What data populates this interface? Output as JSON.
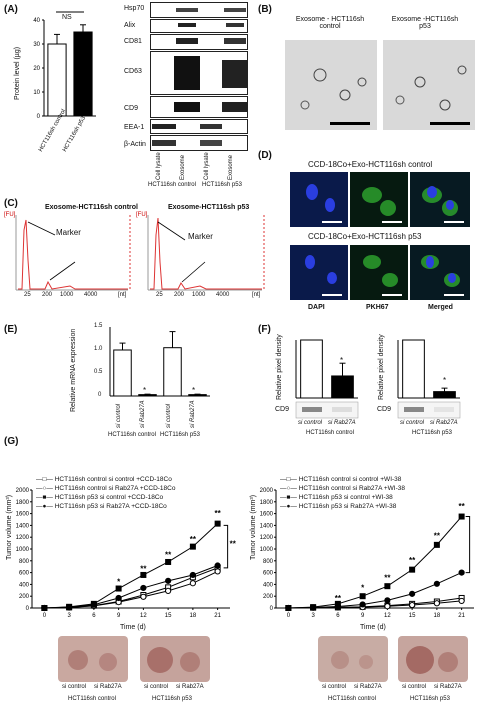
{
  "panels": {
    "A": {
      "letter": "(A)",
      "ns_label": "NS",
      "ylabel": "Protein level (µg)",
      "bar_labels": [
        "HCT116sh control",
        "HCT116sh p53"
      ],
      "blot_rows": [
        "Hsp70",
        "Alix",
        "CD81",
        "CD63",
        "CD9",
        "EEA-1",
        "β-Actin"
      ],
      "lane_labels": [
        "Cell lysate",
        "Exosome",
        "Cell lysate",
        "Exosome"
      ],
      "group_labels": [
        "HCT116sh control",
        "HCT116sh p53"
      ]
    },
    "B": {
      "letter": "(B)",
      "title_left": "Exosome - HCT116sh control",
      "title_right": "Exosome -HCT116sh p53"
    },
    "C": {
      "letter": "(C)",
      "title_left": "Exosome-HCT116sh control",
      "title_right": "Exosome-HCT116sh p53",
      "fu": "[FU]",
      "marker": "Marker",
      "xunit": "[nt]",
      "xticks": [
        "25",
        "200",
        "1000",
        "4000"
      ]
    },
    "D": {
      "letter": "(D)",
      "title_top": "CCD-18Co+Exo-HCT116sh control",
      "title_bottom": "CCD-18Co+Exo-HCT116sh p53",
      "labels": [
        "DAPI",
        "PKH67",
        "Merged"
      ]
    },
    "E": {
      "letter": "(E)",
      "ylabel": "Relative mRNA expression",
      "yticks": [
        "0",
        "0.5",
        "1.0",
        "1.5"
      ],
      "xlabels": [
        "si control",
        "si Rab27A",
        "si control",
        "si Rab27A"
      ],
      "groups": [
        "HCT116sh control",
        "HCT116sh p53"
      ],
      "star": "*"
    },
    "F": {
      "letter": "(F)",
      "ylabel": "Relative pixel density",
      "row": "CD9",
      "xlabels": [
        "si control",
        "si Rab27A"
      ],
      "groups": [
        "HCT116sh control",
        "HCT116sh p53"
      ],
      "star": "*"
    },
    "G": {
      "letter": "(G)",
      "ylabel": "Tumor volume (mm³)",
      "xlabel": "Time (d)",
      "legend_left": [
        "HCT116sh control si control +CCD-18Co",
        "HCT116sh control si Rab27A +CCD-18Co",
        "HCT116sh p53 si control +CCD-18Co",
        "HCT116sh p53 si Rab27A +CCD-18Co"
      ],
      "legend_right": [
        "HCT116sh control si control +WI-38",
        "HCT116sh control si Rab27A +WI-38",
        "HCT116sh p53 si control +WI-38",
        "HCT116sh p53 si Rab27A +WI-38"
      ],
      "photo_labels": [
        "si control",
        "si Rab27A"
      ],
      "photo_groups": [
        "HCT116sh control",
        "HCT116sh p53"
      ],
      "sig": "**",
      "sig1": "*"
    }
  },
  "chart_data": [
    {
      "type": "bar",
      "panel": "A",
      "categories": [
        "HCT116sh control",
        "HCT116sh p53"
      ],
      "values": [
        30,
        35
      ],
      "errors": [
        4,
        3
      ],
      "ylim": [
        0,
        40
      ],
      "ylabel": "Protein level (µg)",
      "colors": [
        "#ffffff",
        "#000000"
      ]
    },
    {
      "type": "bar",
      "panel": "E",
      "categories": [
        "si control",
        "si Rab27A",
        "si control",
        "si Rab27A"
      ],
      "values": [
        1.0,
        0.03,
        1.05,
        0.03
      ],
      "errors": [
        0.15,
        0.01,
        0.35,
        0.01
      ],
      "ylim": [
        0,
        1.5
      ],
      "ylabel": "Relative mRNA expression",
      "colors": [
        "#ffffff",
        "#000000",
        "#ffffff",
        "#000000"
      ]
    },
    {
      "type": "bar",
      "panel": "F-left",
      "categories": [
        "si control",
        "si Rab27A"
      ],
      "values": [
        1.0,
        0.38
      ],
      "errors": [
        0,
        0.22
      ],
      "ylim": [
        0,
        1.0
      ],
      "colors": [
        "#ffffff",
        "#000000"
      ]
    },
    {
      "type": "bar",
      "panel": "F-right",
      "categories": [
        "si control",
        "si Rab27A"
      ],
      "values": [
        1.0,
        0.11
      ],
      "errors": [
        0,
        0.06
      ],
      "ylim": [
        0,
        1.0
      ],
      "colors": [
        "#ffffff",
        "#000000"
      ]
    },
    {
      "type": "line",
      "panel": "G-left",
      "x": [
        0,
        3,
        6,
        9,
        12,
        15,
        18,
        21
      ],
      "ylim": [
        0,
        2000
      ],
      "yticks": [
        0,
        200,
        400,
        600,
        800,
        1000,
        1200,
        1400,
        1600,
        1800,
        2000
      ],
      "ylabel": "Tumor volume (mm³)",
      "xlabel": "Time (d)",
      "series": [
        {
          "name": "HCT116sh control si control +CCD-18Co",
          "marker": "open-square",
          "values": [
            0,
            10,
            40,
            110,
            220,
            350,
            520,
            680
          ]
        },
        {
          "name": "HCT116sh control si Rab27A +CCD-18Co",
          "marker": "open-circle",
          "values": [
            0,
            8,
            35,
            100,
            190,
            290,
            420,
            620
          ]
        },
        {
          "name": "HCT116sh p53 si control +CCD-18Co",
          "marker": "filled-square",
          "values": [
            0,
            20,
            70,
            330,
            560,
            780,
            1040,
            1430
          ]
        },
        {
          "name": "HCT116sh p53 si Rab27A +CCD-18Co",
          "marker": "filled-circle",
          "values": [
            0,
            15,
            55,
            170,
            340,
            460,
            560,
            720
          ]
        }
      ]
    },
    {
      "type": "line",
      "panel": "G-right",
      "x": [
        0,
        3,
        6,
        9,
        12,
        15,
        18,
        21
      ],
      "ylim": [
        0,
        2000
      ],
      "yticks": [
        0,
        200,
        400,
        600,
        800,
        1000,
        1200,
        1400,
        1600,
        1800,
        2000
      ],
      "ylabel": "Tumor volume (mm³)",
      "xlabel": "Time (d)",
      "series": [
        {
          "name": "HCT116sh control si control +WI-38",
          "marker": "open-square",
          "values": [
            0,
            5,
            10,
            20,
            40,
            70,
            110,
            170
          ]
        },
        {
          "name": "HCT116sh control si Rab27A +WI-38",
          "marker": "open-circle",
          "values": [
            0,
            5,
            10,
            15,
            30,
            50,
            80,
            120
          ]
        },
        {
          "name": "HCT116sh p53 si control +WI-38",
          "marker": "filled-square",
          "values": [
            0,
            15,
            70,
            200,
            370,
            650,
            1070,
            1550
          ]
        },
        {
          "name": "HCT116sh p53 si Rab27A +WI-38",
          "marker": "filled-circle",
          "values": [
            0,
            8,
            25,
            60,
            130,
            240,
            410,
            600
          ]
        }
      ]
    }
  ]
}
